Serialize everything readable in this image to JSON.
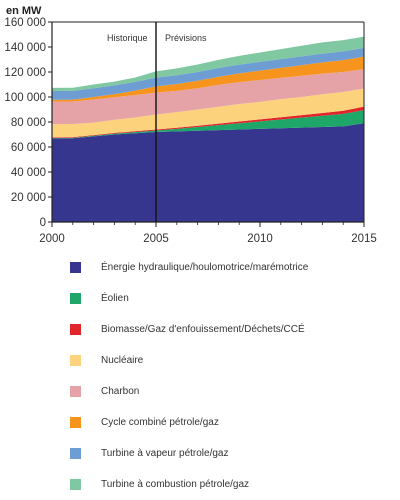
{
  "chart_data": {
    "type": "area",
    "stacked": true,
    "ylabel": "en MW",
    "x": [
      2000,
      2001,
      2002,
      2003,
      2004,
      2005,
      2006,
      2007,
      2008,
      2009,
      2010,
      2011,
      2012,
      2013,
      2014,
      2015
    ],
    "xticks": [
      "2000",
      "2005",
      "2010",
      "2015"
    ],
    "yticks": [
      "0",
      "20 000",
      "40 000",
      "60 000",
      "80 000",
      "100 000",
      "120 000",
      "140 000",
      "160 000"
    ],
    "xlim": [
      2000,
      2015
    ],
    "ylim": [
      0,
      160000
    ],
    "divider_x": 2005,
    "annotations": {
      "historical": "Historique",
      "forecast": "Prévisions"
    },
    "series": [
      {
        "name": "Énergie hydraulique/houlomotrice/marémotrice",
        "color": "#37368f",
        "values": [
          67000,
          67000,
          68500,
          70000,
          71000,
          72000,
          72500,
          73000,
          73500,
          74000,
          74500,
          75000,
          75500,
          76000,
          76500,
          79000
        ]
      },
      {
        "name": "Éolien",
        "color": "#1fa769",
        "values": [
          300,
          400,
          500,
          700,
          900,
          1200,
          2000,
          3000,
          4000,
          5000,
          6000,
          7000,
          8000,
          9000,
          10000,
          10500
        ]
      },
      {
        "name": "Biomasse/Gaz d'enfouissement/Déchets/CCÉ",
        "color": "#e0262b",
        "values": [
          500,
          500,
          500,
          600,
          700,
          800,
          900,
          1000,
          1200,
          1400,
          1600,
          1800,
          2000,
          2200,
          2500,
          2800
        ]
      },
      {
        "name": "Nucléaire",
        "color": "#fdd27d",
        "values": [
          10500,
          10500,
          10000,
          10500,
          11000,
          12000,
          12500,
          13000,
          13500,
          14000,
          14000,
          14500,
          14500,
          15000,
          15000,
          14500
        ]
      },
      {
        "name": "Charbon",
        "color": "#e5a3a8",
        "values": [
          18000,
          18000,
          18500,
          18000,
          18000,
          17500,
          17000,
          17000,
          17500,
          17500,
          17500,
          17000,
          17000,
          16500,
          16000,
          15500
        ]
      },
      {
        "name": "Cycle combiné pétrole/gaz",
        "color": "#f7941d",
        "values": [
          1500,
          1500,
          2000,
          2500,
          3500,
          5000,
          5500,
          6000,
          6500,
          7000,
          7500,
          8000,
          8500,
          9000,
          9500,
          10000
        ]
      },
      {
        "name": "Turbine à vapeur pétrole/gaz",
        "color": "#6d9dd3",
        "values": [
          7000,
          7000,
          7000,
          7000,
          7000,
          7000,
          7000,
          7000,
          7000,
          7000,
          7000,
          7000,
          7000,
          7000,
          7000,
          7000
        ]
      },
      {
        "name": "Turbine à combustion pétrole/gaz",
        "color": "#80c8a2",
        "values": [
          2500,
          2500,
          3000,
          3000,
          3500,
          5000,
          5500,
          6000,
          6500,
          7000,
          7500,
          8000,
          8500,
          9000,
          9000,
          9000
        ]
      }
    ]
  }
}
